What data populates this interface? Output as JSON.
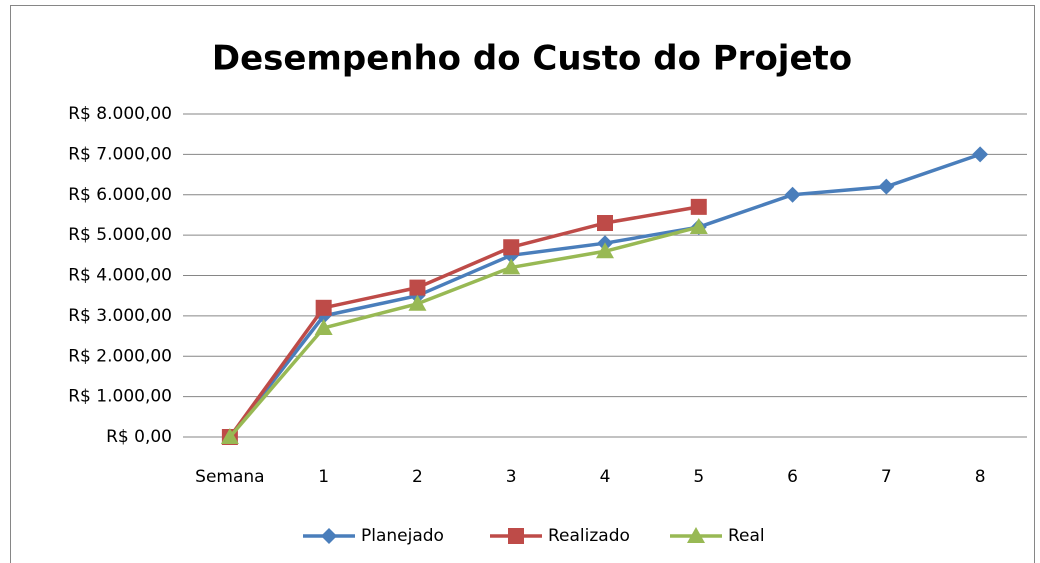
{
  "chart_data": {
    "type": "line",
    "title": "Desempenho do Custo do Projeto",
    "categories": [
      "Semana",
      "1",
      "2",
      "3",
      "4",
      "5",
      "6",
      "7",
      "8"
    ],
    "series": [
      {
        "name": "Planejado",
        "color": "#4a7ebb",
        "marker": "diamond",
        "values": [
          0,
          3000,
          3500,
          4500,
          4800,
          5200,
          6000,
          6200,
          7000
        ]
      },
      {
        "name": "Realizado",
        "color": "#be4b48",
        "marker": "square",
        "values": [
          0,
          3200,
          3700,
          4700,
          5300,
          5700,
          null,
          null,
          null
        ]
      },
      {
        "name": "Real",
        "color": "#98b954",
        "marker": "triangle",
        "values": [
          0,
          2700,
          3300,
          4200,
          4600,
          5200,
          null,
          null,
          null
        ]
      }
    ],
    "ylim": [
      0,
      8000
    ],
    "yticks": [
      {
        "value": 0,
        "label": "R$ 0,00"
      },
      {
        "value": 1000,
        "label": "R$ 1.000,00"
      },
      {
        "value": 2000,
        "label": "R$ 2.000,00"
      },
      {
        "value": 3000,
        "label": "R$ 3.000,00"
      },
      {
        "value": 4000,
        "label": "R$ 4.000,00"
      },
      {
        "value": 5000,
        "label": "R$ 5.000,00"
      },
      {
        "value": 6000,
        "label": "R$ 6.000,00"
      },
      {
        "value": 7000,
        "label": "R$ 7.000,00"
      },
      {
        "value": 8000,
        "label": "R$ 8.000,00"
      }
    ],
    "grid": true,
    "legend": "bottom"
  }
}
